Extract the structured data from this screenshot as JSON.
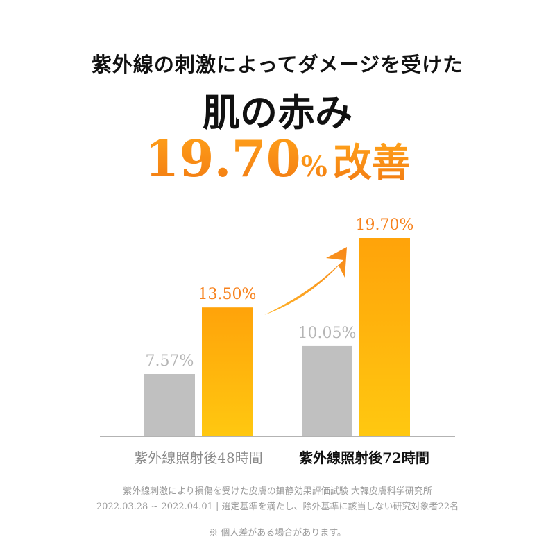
{
  "header": {
    "line1": "紫外線の刺激によってダメージを受けた",
    "line2": "肌の赤み",
    "highlight_number": "19.70",
    "highlight_unit": "%",
    "highlight_suffix": "改善"
  },
  "chart_data": {
    "type": "bar",
    "categories": [
      "紫外線照射後48時間",
      "紫外線照射後72時間"
    ],
    "series": [
      {
        "values": [
          7.57,
          10.05
        ],
        "labels": [
          "7.57%",
          "10.05%"
        ],
        "color": "#c0c0c0",
        "label_color": "#b5b5b5"
      },
      {
        "values": [
          13.5,
          19.7
        ],
        "labels": [
          "13.50%",
          "19.70%"
        ],
        "color_top": "#ffa30a",
        "color_bottom": "#ffc810",
        "label_color": "#f7821d"
      }
    ],
    "ylim": [
      2,
      19.7
    ],
    "grid": false,
    "legend": "none",
    "category_colors": [
      "#8a8a8a",
      "#111111"
    ],
    "arrow_color": "#f7891a"
  },
  "footer": {
    "source": "紫外線刺激により損傷を受けた皮膚の鎮静効果評価試験 大韓皮膚科学研究所",
    "period": "2022.03.28 ~ 2022.04.01 | 選定基準を満たし、除外基準に該当しない研究対象者22名",
    "note": "※ 個人差がある場合があります。"
  }
}
